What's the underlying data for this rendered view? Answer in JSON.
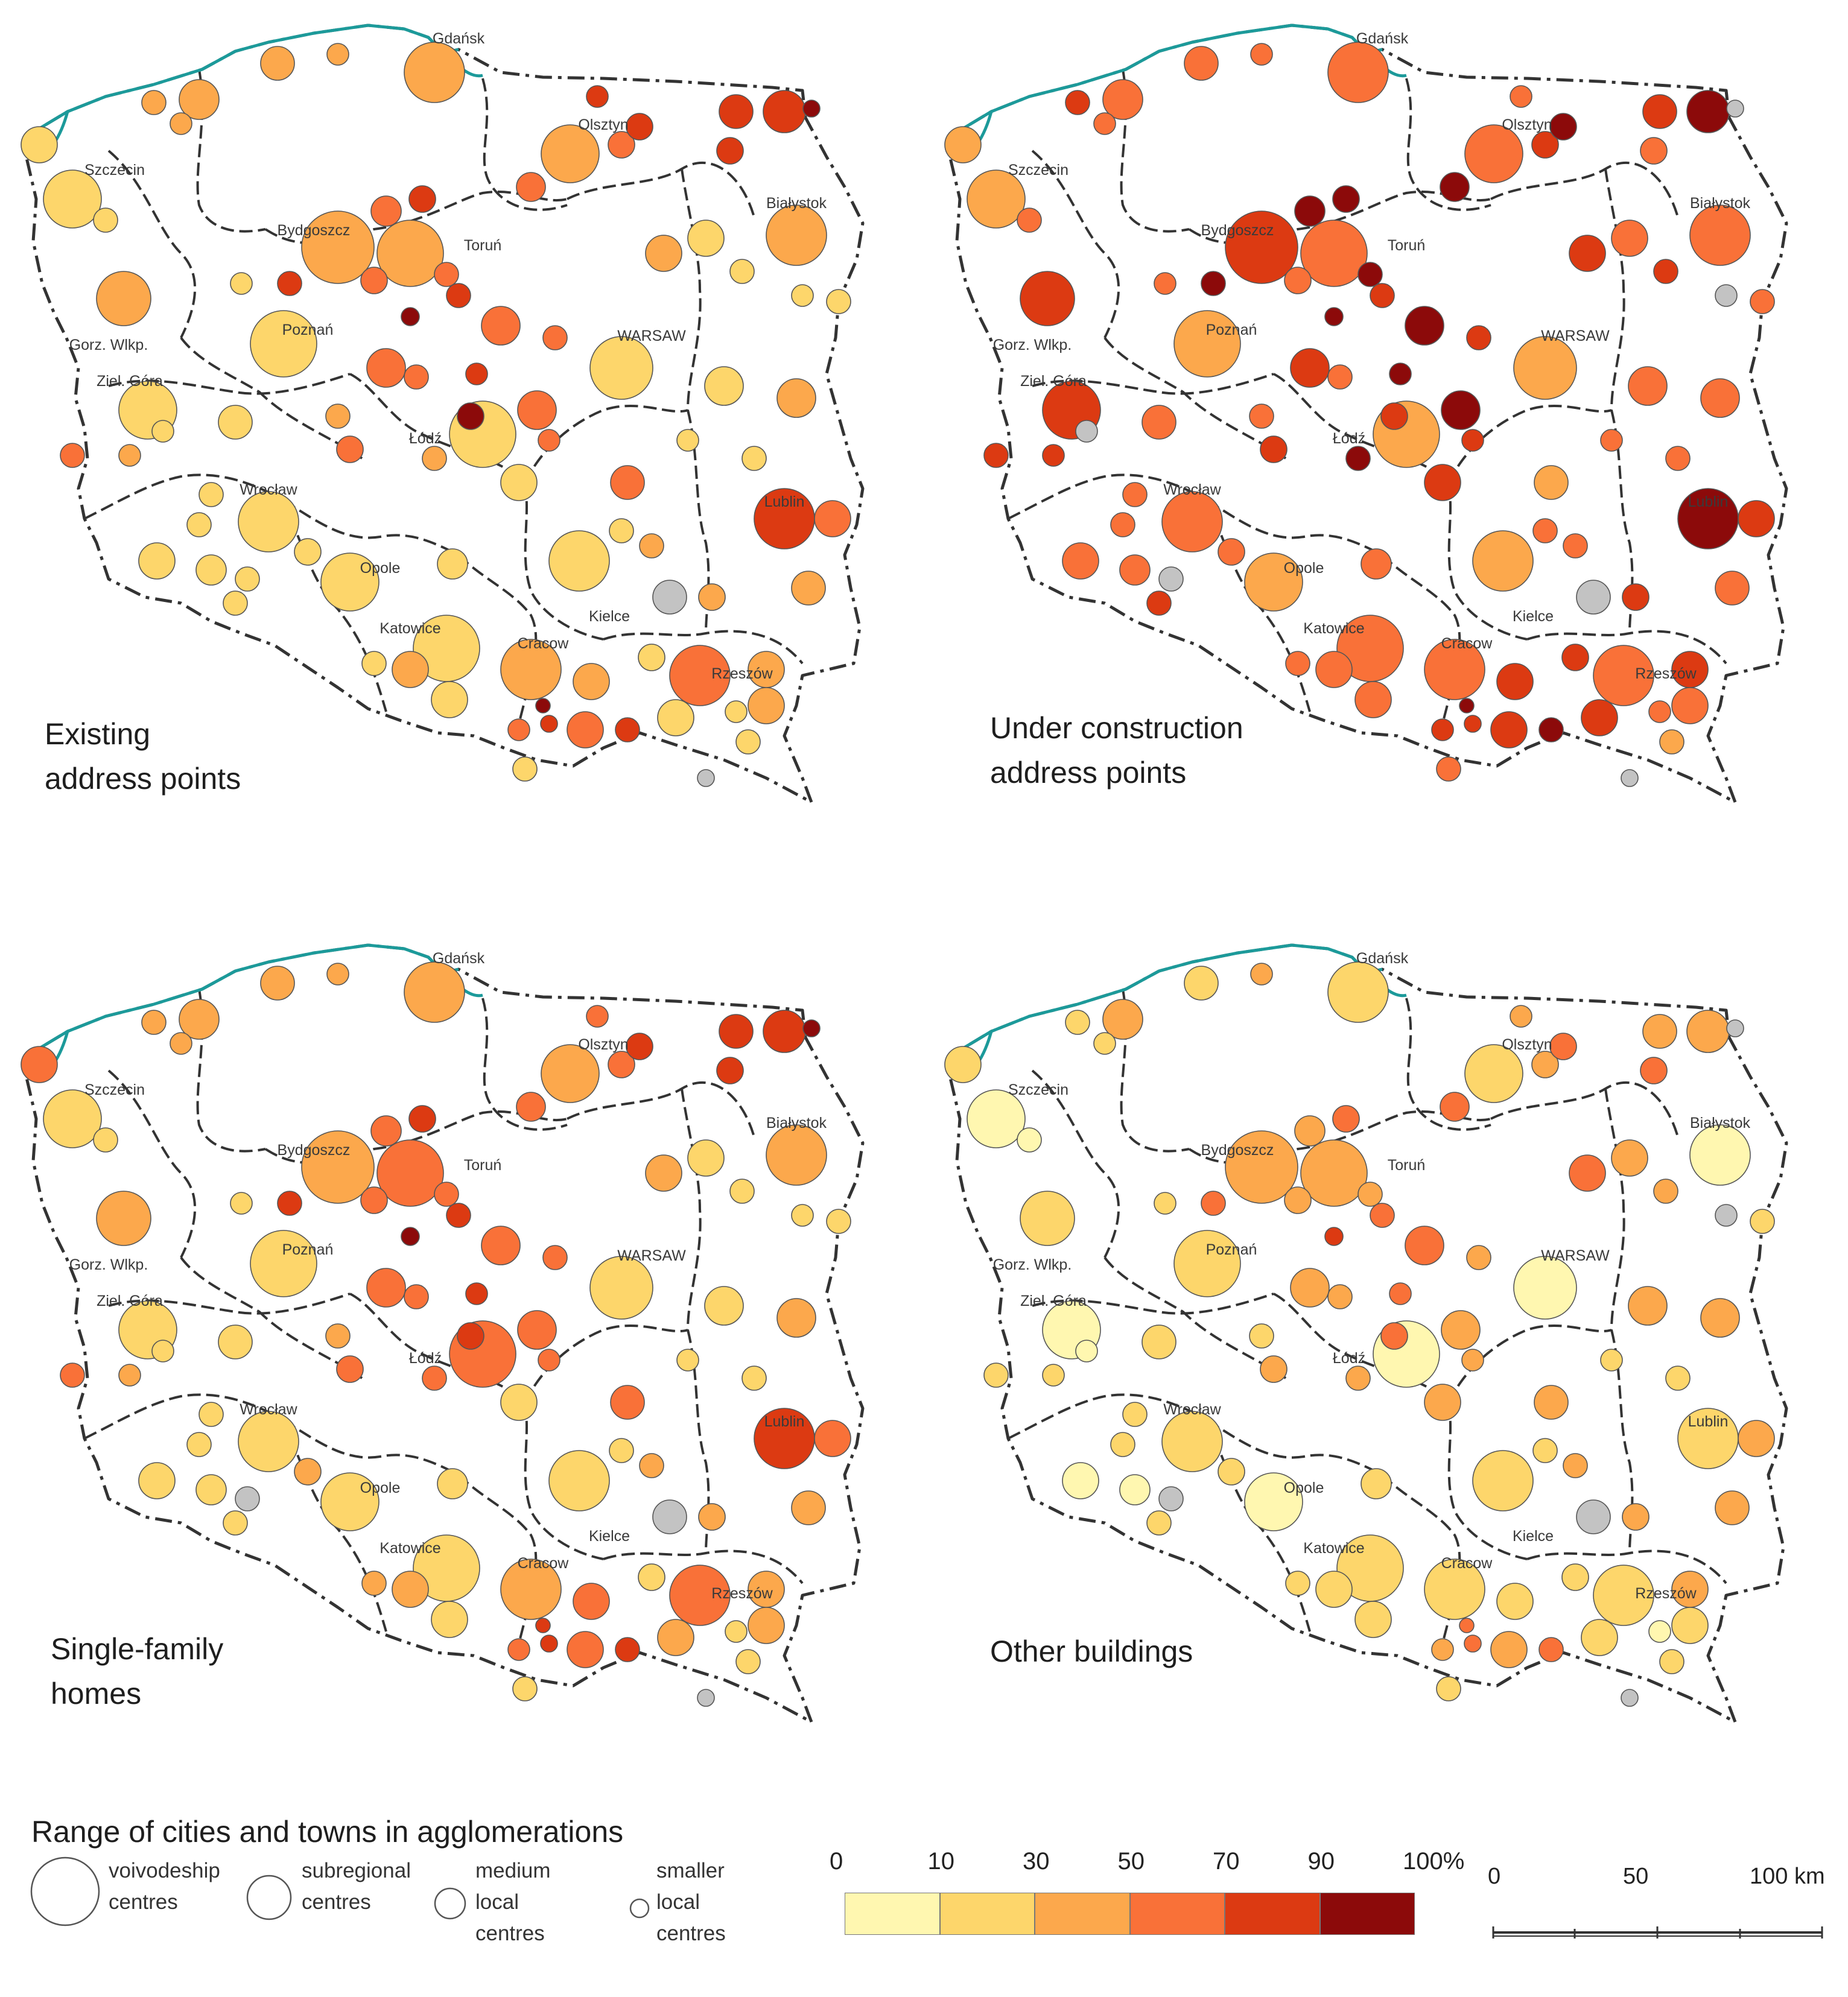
{
  "panels": [
    {
      "id": "existing",
      "caption": "Existing\naddress points"
    },
    {
      "id": "construction",
      "caption": "Under construction\naddress points"
    },
    {
      "id": "single",
      "caption": "Single-family\nhomes"
    },
    {
      "id": "other",
      "caption": "Other buildings"
    }
  ],
  "cities": [
    "Gdańsk",
    "Olsztyn",
    "Szczecin",
    "Białystok",
    "Bydgoszcz",
    "Toruń",
    "Gorz. Wlkp.",
    "WARSAW",
    "Poznań",
    "Ziel. Góra",
    "Łódź",
    "Wrocław",
    "Lublin",
    "Opole",
    "Kielce",
    "Katowice",
    "Cracow",
    "Rzeszów"
  ],
  "legend": {
    "title": "Range of cities and towns in agglomerations",
    "sizes": [
      {
        "label": "voivodeship\ncentres"
      },
      {
        "label": "subregional\ncentres"
      },
      {
        "label": "medium local\ncentres"
      },
      {
        "label": "smaller\nlocal centres"
      }
    ],
    "scale_ticks": [
      "0",
      "10",
      "30",
      "50",
      "70",
      "90",
      "100%"
    ],
    "classes": [
      {
        "from": 0,
        "to": 10,
        "color": "#fff7b0"
      },
      {
        "from": 10,
        "to": 30,
        "color": "#fdd66b"
      },
      {
        "from": 30,
        "to": 50,
        "color": "#fca84c"
      },
      {
        "from": 50,
        "to": 70,
        "color": "#f97138"
      },
      {
        "from": 70,
        "to": 90,
        "color": "#dc3a12"
      },
      {
        "from": 90,
        "to": 100,
        "color": "#8c0a0a"
      }
    ],
    "no_data_color": "#c3c3c3",
    "scalebar": [
      "0",
      "50",
      "100 km"
    ]
  },
  "colors": {
    "border": "#333333",
    "coast": "#1c9a9a"
  }
}
